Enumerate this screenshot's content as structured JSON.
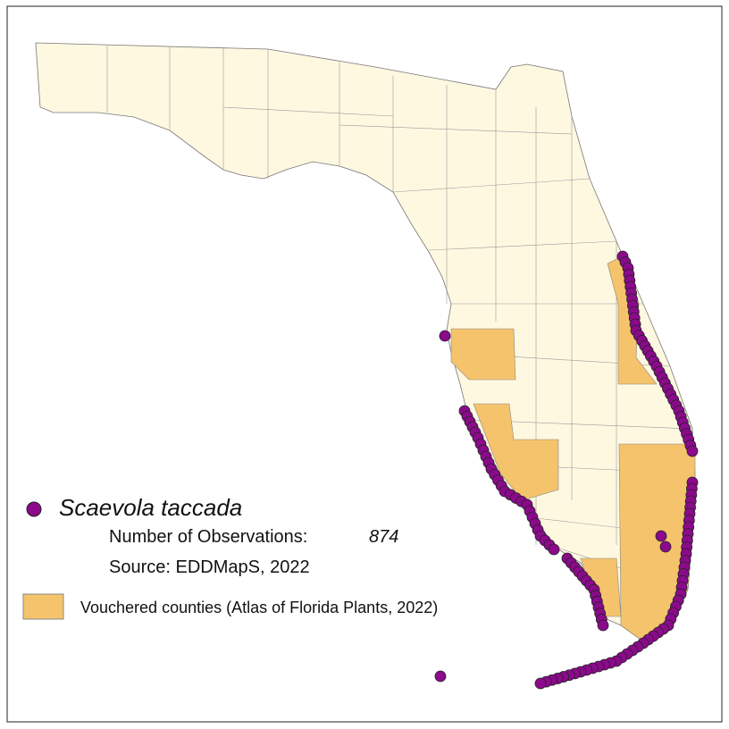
{
  "legend": {
    "species": "Scaevola taccada",
    "observations_label": "Number of Observations:",
    "observations": 874,
    "source": "Source: EDDMapS, 2022",
    "counties_label": "Vouchered counties (Atlas of Florida Plants, 2022)"
  }
}
